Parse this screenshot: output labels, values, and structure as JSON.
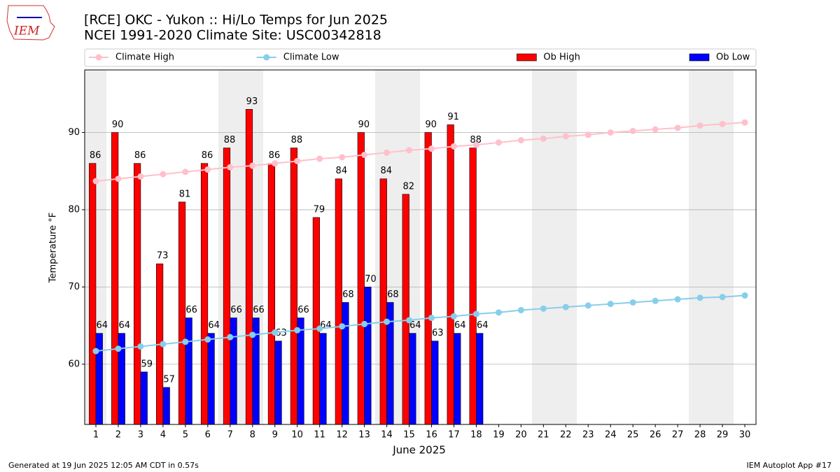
{
  "chart_data": {
    "type": "bar",
    "logo_text": "IEM",
    "title": "[RCE] OKC - Yukon :: Hi/Lo Temps for Jun 2025",
    "subtitle": "NCEI 1991-2020 Climate Site: USC00342818",
    "xlabel": "June 2025",
    "ylabel": "Temperature °F",
    "footer_left": "Generated at 19 Jun 2025 12:05 AM CDT in 0.57s",
    "footer_right": "IEM Autoplot App #17",
    "legend": "top",
    "grid": true,
    "x": [
      1,
      2,
      3,
      4,
      5,
      6,
      7,
      8,
      9,
      10,
      11,
      12,
      13,
      14,
      15,
      16,
      17,
      18,
      19,
      20,
      21,
      22,
      23,
      24,
      25,
      26,
      27,
      28,
      29,
      30
    ],
    "xlim": [
      0.5,
      30.5
    ],
    "xticks": [
      1,
      2,
      3,
      4,
      5,
      6,
      7,
      8,
      9,
      10,
      11,
      12,
      13,
      14,
      15,
      16,
      17,
      18,
      19,
      20,
      21,
      22,
      23,
      24,
      25,
      26,
      27,
      28,
      29,
      30
    ],
    "ylim": [
      52.2,
      98.1
    ],
    "yticks": [
      60,
      70,
      80,
      90
    ],
    "series": [
      {
        "name": "Climate High",
        "type": "line",
        "color": "#ffc0cb",
        "values": [
          83.7,
          84.0,
          84.3,
          84.6,
          84.9,
          85.2,
          85.5,
          85.7,
          86.0,
          86.3,
          86.6,
          86.8,
          87.1,
          87.4,
          87.7,
          87.9,
          88.2,
          88.4,
          88.7,
          89.0,
          89.2,
          89.5,
          89.7,
          90.0,
          90.2,
          90.4,
          90.6,
          90.9,
          91.1,
          91.3
        ]
      },
      {
        "name": "Climate Low",
        "type": "line",
        "color": "#87ceeb",
        "values": [
          61.7,
          62.0,
          62.3,
          62.6,
          62.9,
          63.2,
          63.5,
          63.8,
          64.1,
          64.4,
          64.6,
          64.9,
          65.2,
          65.5,
          65.7,
          66.0,
          66.2,
          66.5,
          66.7,
          67.0,
          67.2,
          67.4,
          67.6,
          67.8,
          68.0,
          68.2,
          68.4,
          68.6,
          68.7,
          68.9
        ]
      },
      {
        "name": "Ob High",
        "type": "bar",
        "color": "#ff0000",
        "values": [
          86,
          90,
          86,
          73,
          81,
          86,
          88,
          93,
          86,
          88,
          79,
          84,
          90,
          84,
          82,
          90,
          91,
          88,
          null,
          null,
          null,
          null,
          null,
          null,
          null,
          null,
          null,
          null,
          null,
          null
        ]
      },
      {
        "name": "Ob Low",
        "type": "bar",
        "color": "#0000ff",
        "values": [
          64,
          64,
          59,
          57,
          66,
          64,
          66,
          66,
          63,
          66,
          64,
          68,
          70,
          68,
          64,
          63,
          64,
          64,
          null,
          null,
          null,
          null,
          null,
          null,
          null,
          null,
          null,
          null,
          null,
          null
        ]
      }
    ]
  }
}
